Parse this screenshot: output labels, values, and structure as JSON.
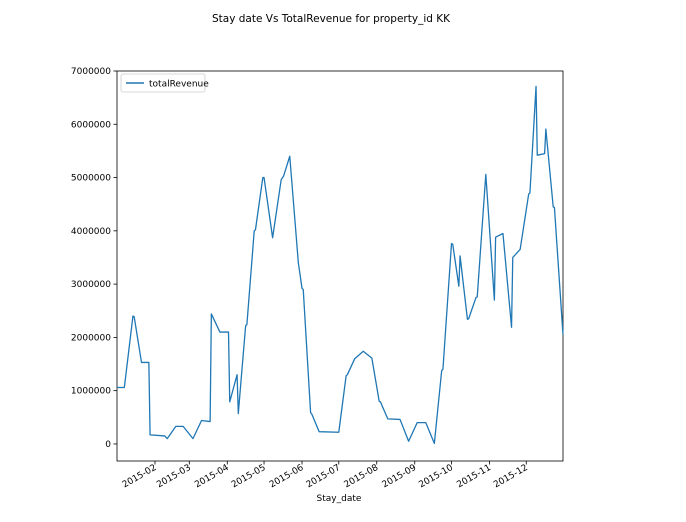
{
  "chart_data": {
    "type": "line",
    "title": "Stay date Vs TotalRevenue for property_id KK",
    "xlabel": "Stay_date",
    "ylabel": "",
    "ylim": [
      -320000,
      7000000
    ],
    "xlim": [
      "2015-01-01",
      "2015-12-31"
    ],
    "grid": false,
    "legend": {
      "location": "upper left",
      "entries": [
        "totalRevenue"
      ]
    },
    "y_ticks": [
      0,
      1000000,
      2000000,
      3000000,
      4000000,
      5000000,
      6000000,
      7000000
    ],
    "x_ticks": [
      "2015-02",
      "2015-03",
      "2015-04",
      "2015-05",
      "2015-06",
      "2015-07",
      "2015-08",
      "2015-09",
      "2015-10",
      "2015-11",
      "2015-12"
    ],
    "series": [
      {
        "name": "totalRevenue",
        "color": "#1f77b4",
        "points": [
          [
            "2015-01-01",
            1060000
          ],
          [
            "2015-01-07",
            1060000
          ],
          [
            "2015-01-14",
            2400000
          ],
          [
            "2015-01-15",
            2390000
          ],
          [
            "2015-01-21",
            1530000
          ],
          [
            "2015-01-27",
            1530000
          ],
          [
            "2015-01-28",
            170000
          ],
          [
            "2015-02-09",
            150000
          ],
          [
            "2015-02-11",
            100000
          ],
          [
            "2015-02-18",
            330000
          ],
          [
            "2015-02-24",
            330000
          ],
          [
            "2015-03-04",
            100000
          ],
          [
            "2015-03-11",
            440000
          ],
          [
            "2015-03-18",
            420000
          ],
          [
            "2015-03-19",
            2440000
          ],
          [
            "2015-03-26",
            2100000
          ],
          [
            "2015-04-02",
            2100000
          ],
          [
            "2015-04-03",
            790000
          ],
          [
            "2015-04-09",
            1300000
          ],
          [
            "2015-04-10",
            570000
          ],
          [
            "2015-04-13",
            1400000
          ],
          [
            "2015-04-16",
            2220000
          ],
          [
            "2015-04-17",
            2240000
          ],
          [
            "2015-04-23",
            4000000
          ],
          [
            "2015-04-24",
            4020000
          ],
          [
            "2015-04-30",
            5000000
          ],
          [
            "2015-05-01",
            5000000
          ],
          [
            "2015-05-08",
            3870000
          ],
          [
            "2015-05-15",
            4960000
          ],
          [
            "2015-05-17",
            5030000
          ],
          [
            "2015-05-22",
            5400000
          ],
          [
            "2015-05-29",
            3400000
          ],
          [
            "2015-06-01",
            2920000
          ],
          [
            "2015-06-02",
            2900000
          ],
          [
            "2015-06-08",
            590000
          ],
          [
            "2015-06-09",
            560000
          ],
          [
            "2015-06-15",
            230000
          ],
          [
            "2015-07-01",
            220000
          ],
          [
            "2015-07-07",
            1280000
          ],
          [
            "2015-07-08",
            1300000
          ],
          [
            "2015-07-14",
            1600000
          ],
          [
            "2015-07-21",
            1740000
          ],
          [
            "2015-07-28",
            1610000
          ],
          [
            "2015-08-03",
            800000
          ],
          [
            "2015-08-04",
            790000
          ],
          [
            "2015-08-10",
            470000
          ],
          [
            "2015-08-20",
            460000
          ],
          [
            "2015-08-27",
            50000
          ],
          [
            "2015-09-03",
            400000
          ],
          [
            "2015-09-10",
            400000
          ],
          [
            "2015-09-17",
            10000
          ],
          [
            "2015-09-23",
            1380000
          ],
          [
            "2015-09-24",
            1400000
          ],
          [
            "2015-10-01",
            3760000
          ],
          [
            "2015-10-02",
            3750000
          ],
          [
            "2015-10-07",
            2960000
          ],
          [
            "2015-10-08",
            3530000
          ],
          [
            "2015-10-14",
            2340000
          ],
          [
            "2015-10-15",
            2350000
          ],
          [
            "2015-10-21",
            2750000
          ],
          [
            "2015-10-22",
            2760000
          ],
          [
            "2015-10-29",
            5060000
          ],
          [
            "2015-11-05",
            2700000
          ],
          [
            "2015-11-06",
            3880000
          ],
          [
            "2015-11-12",
            3950000
          ],
          [
            "2015-11-19",
            2190000
          ],
          [
            "2015-11-20",
            3500000
          ],
          [
            "2015-11-26",
            3650000
          ],
          [
            "2015-12-03",
            4690000
          ],
          [
            "2015-12-04",
            4710000
          ],
          [
            "2015-12-09",
            6710000
          ],
          [
            "2015-12-10",
            5420000
          ],
          [
            "2015-12-16",
            5450000
          ],
          [
            "2015-12-17",
            5910000
          ],
          [
            "2015-12-23",
            4450000
          ],
          [
            "2015-12-24",
            4440000
          ],
          [
            "2015-12-31",
            2050000
          ]
        ]
      }
    ]
  }
}
